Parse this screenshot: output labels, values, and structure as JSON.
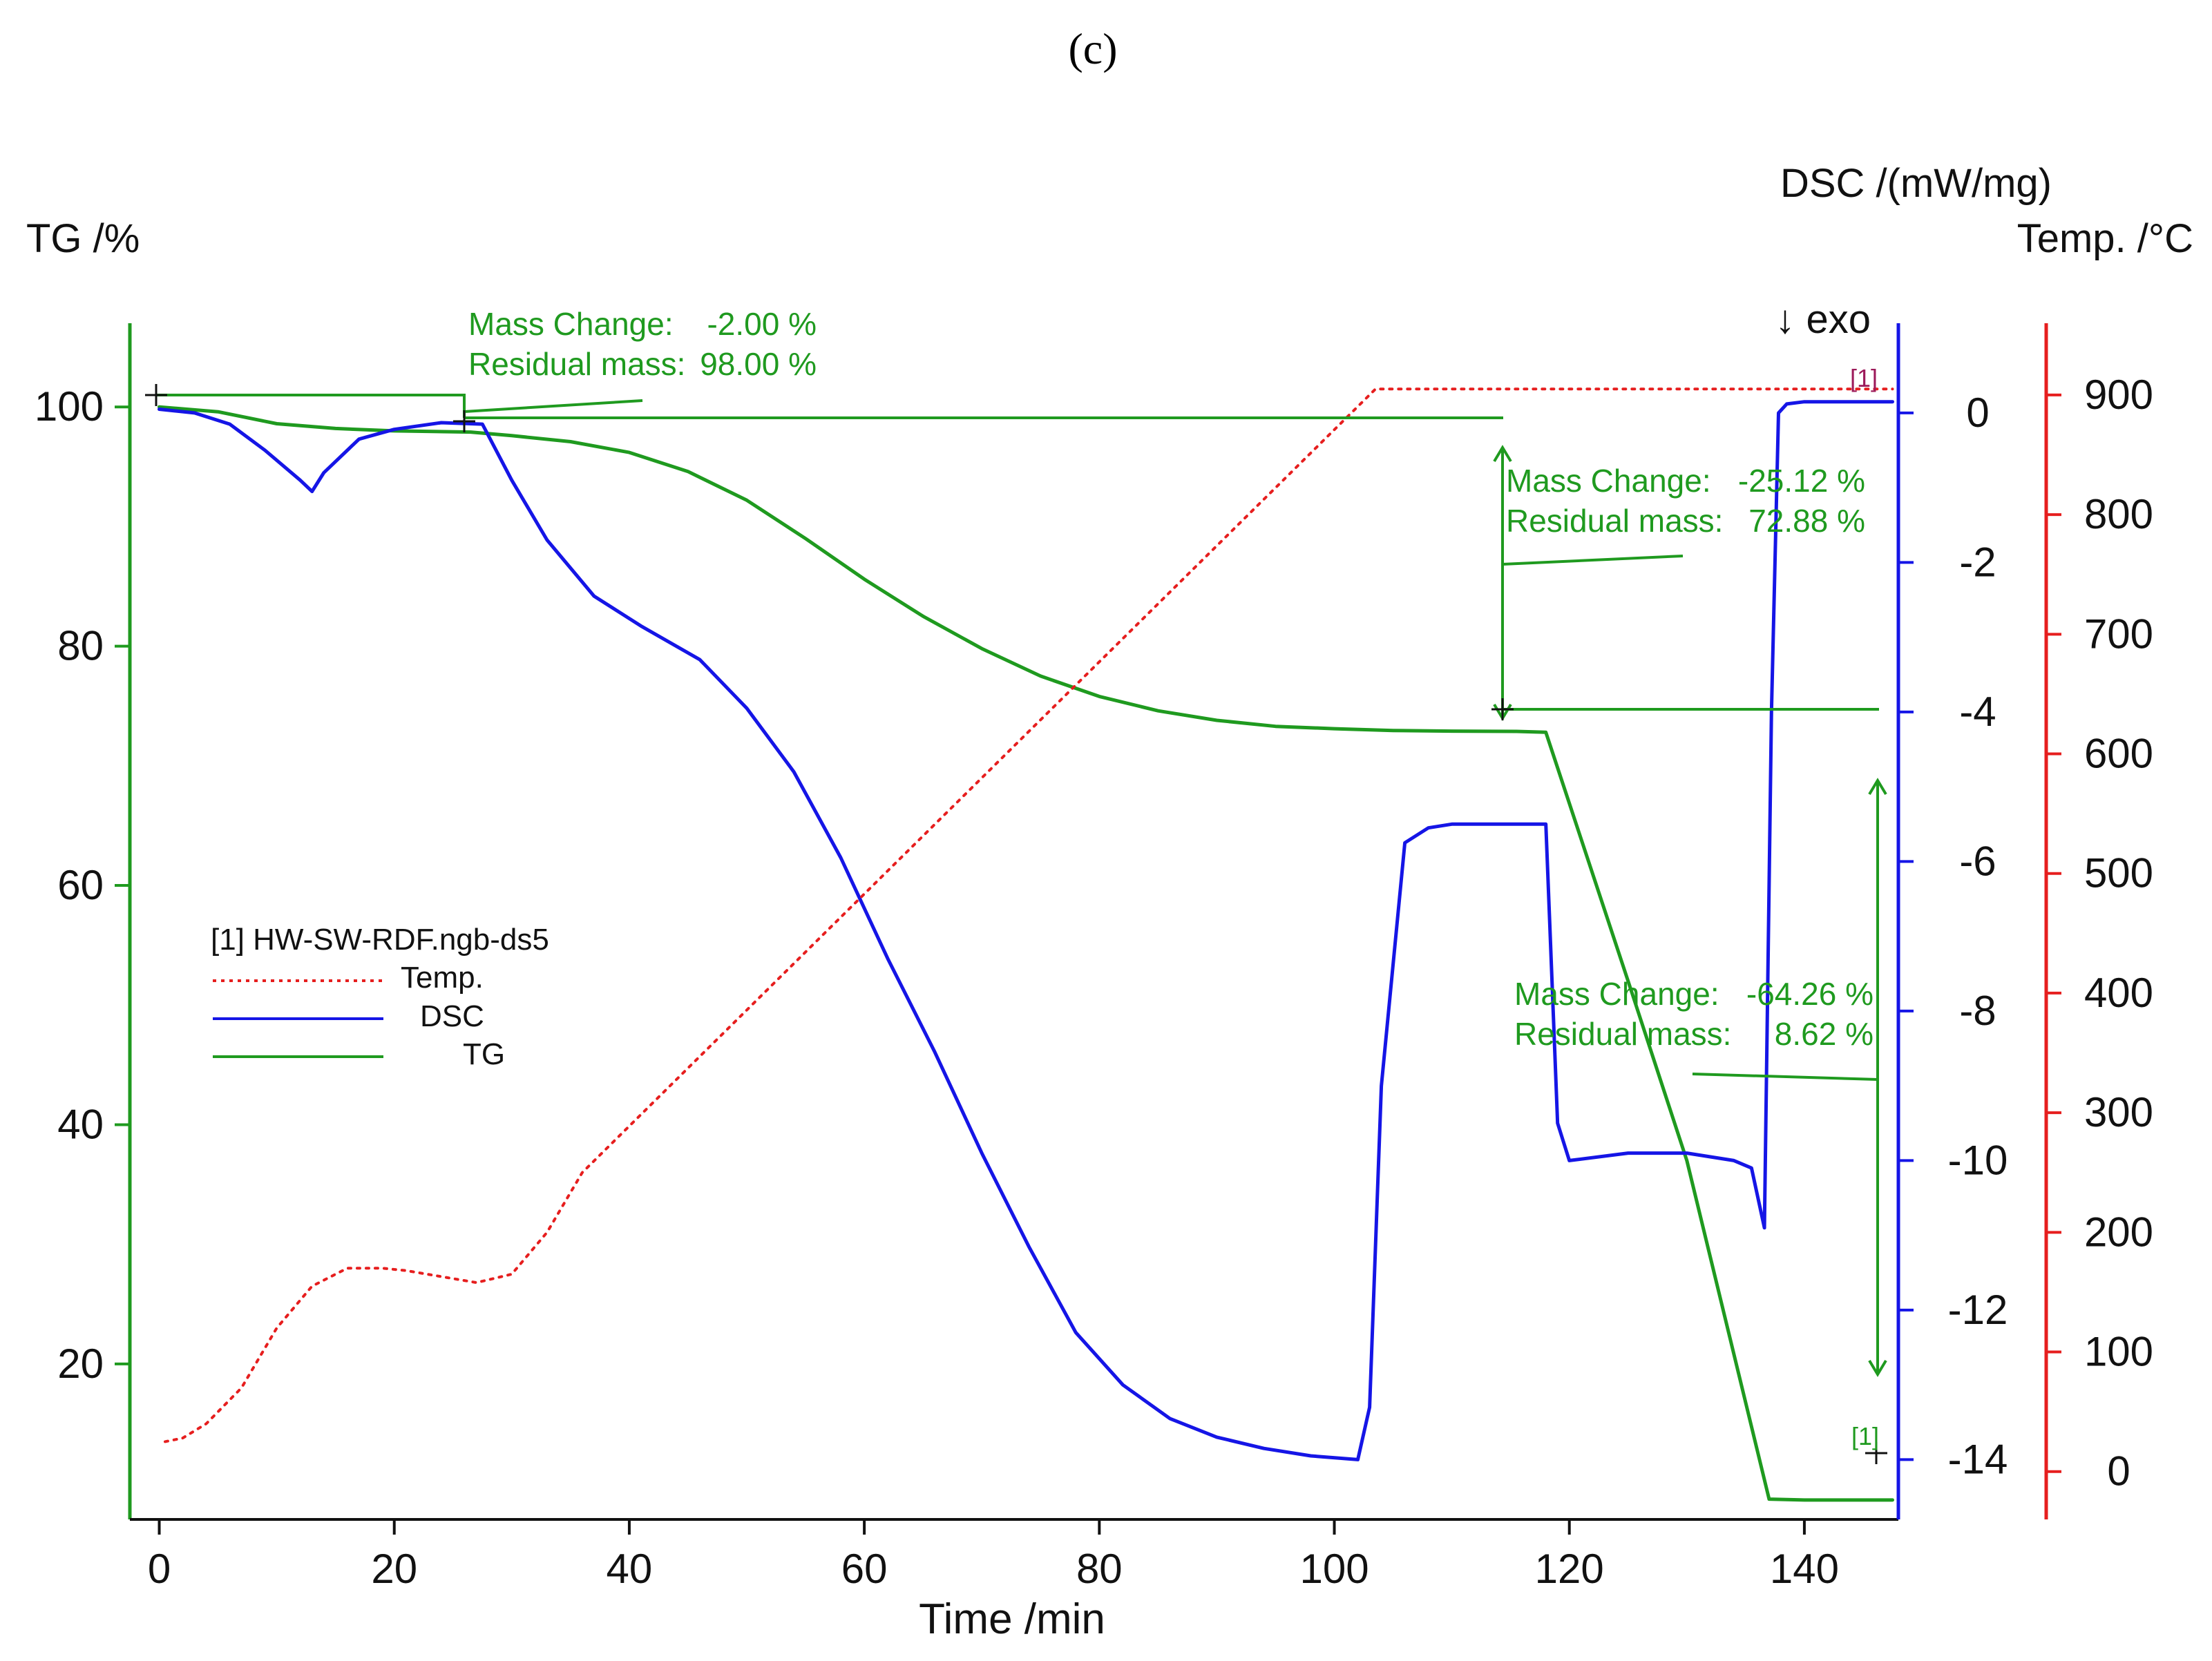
{
  "figure_label": "(c)",
  "chart_data": {
    "type": "line",
    "xlabel": "Time /min",
    "xlim": [
      -2.5,
      148
    ],
    "xticks": [
      0,
      20,
      40,
      60,
      80,
      100,
      120,
      140
    ],
    "axes": {
      "tg": {
        "label": "TG /%",
        "range": [
          7,
          107
        ],
        "ticks": [
          20,
          40,
          60,
          80,
          100
        ],
        "color": "#1f9a1f"
      },
      "dsc": {
        "label": "DSC /(mW/mg)",
        "range": [
          -14.8,
          1.2
        ],
        "ticks": [
          0,
          -2,
          -4,
          -6,
          -8,
          -10,
          -12,
          -14
        ],
        "color": "#1515e6"
      },
      "temp": {
        "label": "Temp. /°C",
        "range": [
          -40,
          960
        ],
        "ticks": [
          0,
          100,
          200,
          300,
          400,
          500,
          600,
          700,
          800,
          900
        ],
        "color": "#e61e1e"
      }
    },
    "exo_label": "↓ exo",
    "legend": {
      "title": "[1]  HW-SW-RDF.ngb-ds5",
      "entries": [
        {
          "name": "Temp.",
          "color": "#e61e1e",
          "style": "dotted"
        },
        {
          "name": "DSC",
          "color": "#1515e6",
          "style": "solid"
        },
        {
          "name": "TG",
          "color": "#1f9a1f",
          "style": "solid"
        }
      ]
    },
    "series": [
      {
        "name": "TG",
        "axis": "tg",
        "color": "#1f9a1f",
        "x": [
          0,
          5,
          10,
          15,
          20,
          26.5,
          30,
          35,
          40,
          45,
          50,
          55,
          60,
          65,
          70,
          75,
          80,
          85,
          90,
          95,
          100,
          105,
          110,
          115.5,
          118,
          125,
          130,
          137,
          140,
          147.5
        ],
        "y": [
          100,
          99.6,
          98.6,
          98.2,
          98.0,
          97.9,
          97.6,
          97.1,
          96.2,
          94.6,
          92.2,
          89.0,
          85.6,
          82.5,
          79.8,
          77.5,
          75.8,
          74.6,
          73.8,
          73.3,
          73.1,
          72.95,
          72.9,
          72.88,
          72.8,
          52.0,
          37.0,
          8.7,
          8.62,
          8.62
        ]
      },
      {
        "name": "DSC",
        "axis": "dsc",
        "color": "#1515e6",
        "x": [
          0,
          3,
          6,
          9,
          12,
          13,
          14,
          17,
          20,
          24,
          27.5,
          30,
          33,
          37,
          41,
          46,
          50,
          54,
          58,
          62,
          66,
          70,
          74,
          78,
          82,
          86,
          90,
          94,
          98,
          102,
          103,
          104,
          106,
          108,
          110,
          115,
          118,
          119,
          120,
          125,
          130,
          134,
          135.5,
          136.6,
          137.2,
          137.8,
          138.5,
          140,
          147.5
        ],
        "y": [
          0.05,
          0.0,
          -0.15,
          -0.5,
          -0.9,
          -1.05,
          -0.8,
          -0.35,
          -0.22,
          -0.13,
          -0.15,
          -0.9,
          -1.7,
          -2.45,
          -2.85,
          -3.3,
          -3.95,
          -4.8,
          -5.95,
          -7.3,
          -8.55,
          -9.9,
          -11.15,
          -12.3,
          -13.0,
          -13.45,
          -13.7,
          -13.85,
          -13.95,
          -14.0,
          -13.3,
          -9.0,
          -5.75,
          -5.55,
          -5.5,
          -5.5,
          -5.5,
          -9.5,
          -10.0,
          -9.9,
          -9.9,
          -10.0,
          -10.1,
          -10.9,
          -4.0,
          0.0,
          0.12,
          0.15,
          0.15
        ]
      },
      {
        "name": "Temp.",
        "axis": "temp",
        "color": "#e61e1e",
        "style": "dotted",
        "x": [
          0.5,
          2,
          4,
          7,
          10,
          13,
          16,
          19,
          21,
          24,
          27,
          30,
          33,
          36,
          103.5,
          110,
          140,
          147.5
        ],
        "y": [
          25,
          28,
          40,
          70,
          120,
          155,
          170,
          170,
          168,
          163,
          158,
          165,
          200,
          250,
          905,
          905,
          905,
          905
        ]
      }
    ],
    "annotations": [
      {
        "id": "step1",
        "mass_change_label": "Mass Change:",
        "mass_change_value": "-2.00 %",
        "residual_label": "Residual mass:",
        "residual_value": "98.00 %"
      },
      {
        "id": "step2",
        "mass_change_label": "Mass Change:",
        "mass_change_value": "-25.12 %",
        "residual_label": "Residual mass:",
        "residual_value": "72.88 %"
      },
      {
        "id": "step3",
        "mass_change_label": "Mass Change:",
        "mass_change_value": "-64.26 %",
        "residual_label": "Residual mass:",
        "residual_value": "8.62 %"
      }
    ],
    "curve_markers": [
      {
        "text": "[1]",
        "color": "#9c1a5a"
      },
      {
        "text": "[1]",
        "color": "#1f9a1f"
      }
    ]
  }
}
